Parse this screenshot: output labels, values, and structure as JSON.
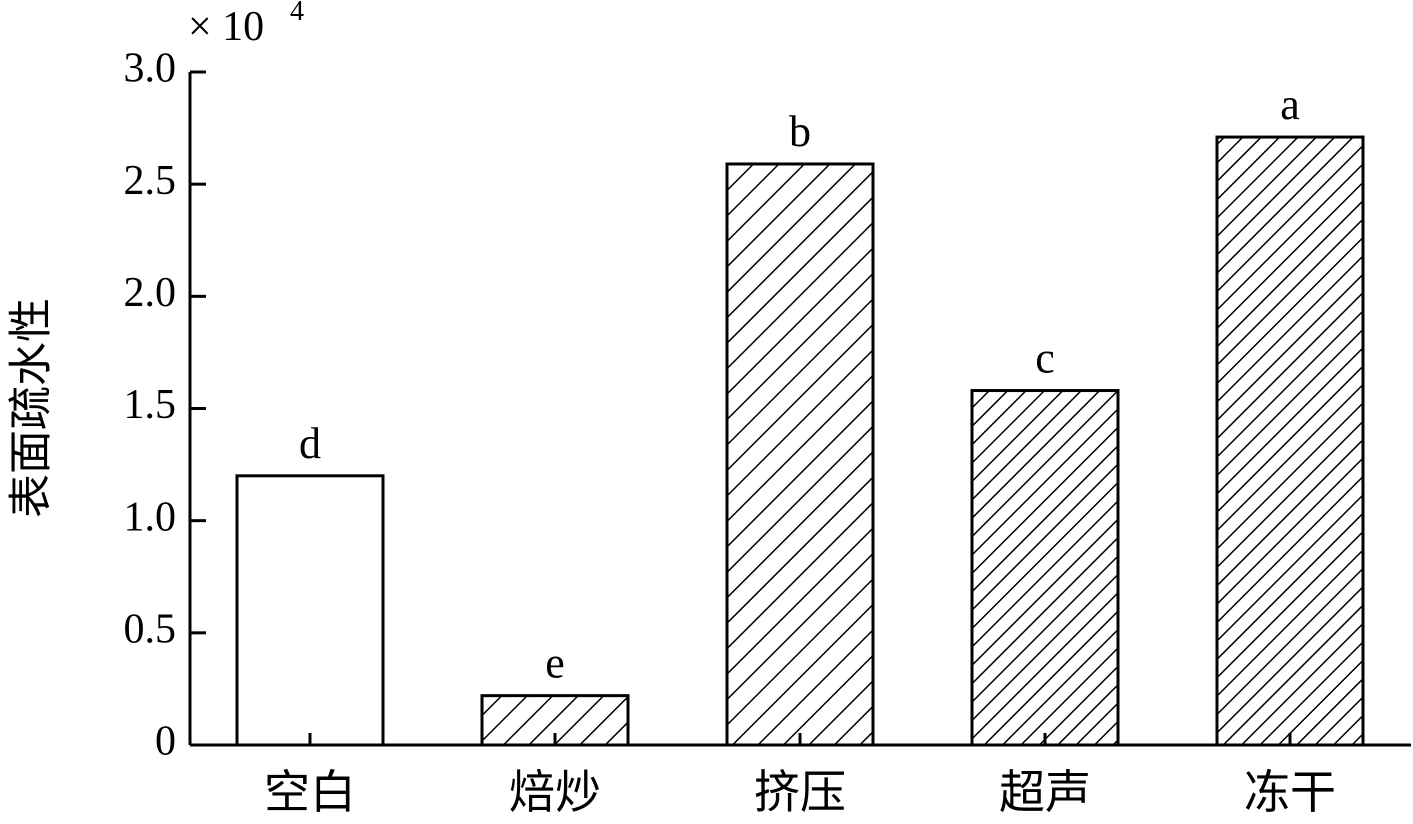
{
  "chart_data": {
    "type": "bar",
    "categories": [
      "空白",
      "焙炒",
      "挤压",
      "超声",
      "冻干"
    ],
    "values": [
      12000,
      2200,
      25900,
      15800,
      27100
    ],
    "significance_labels": [
      "d",
      "e",
      "b",
      "c",
      "a"
    ],
    "bar_fill": [
      "none",
      "hatch-wide",
      "hatch-wide",
      "hatch-dense",
      "hatch-dense"
    ],
    "title": "",
    "xlabel": "",
    "ylabel": "表面疏水性",
    "y_multiplier": "× 10",
    "y_multiplier_exponent": "4",
    "yticks": [
      0,
      5000,
      10000,
      15000,
      20000,
      25000,
      30000
    ],
    "ytick_labels": [
      "0",
      "0.5",
      "1.0",
      "1.5",
      "2.0",
      "2.5",
      "3.0"
    ],
    "ylim": [
      0,
      30000
    ],
    "grid": false,
    "legend": "none",
    "colors": {
      "bar_stroke": "#000000",
      "hatch": "#000000",
      "background": "#ffffff"
    }
  }
}
